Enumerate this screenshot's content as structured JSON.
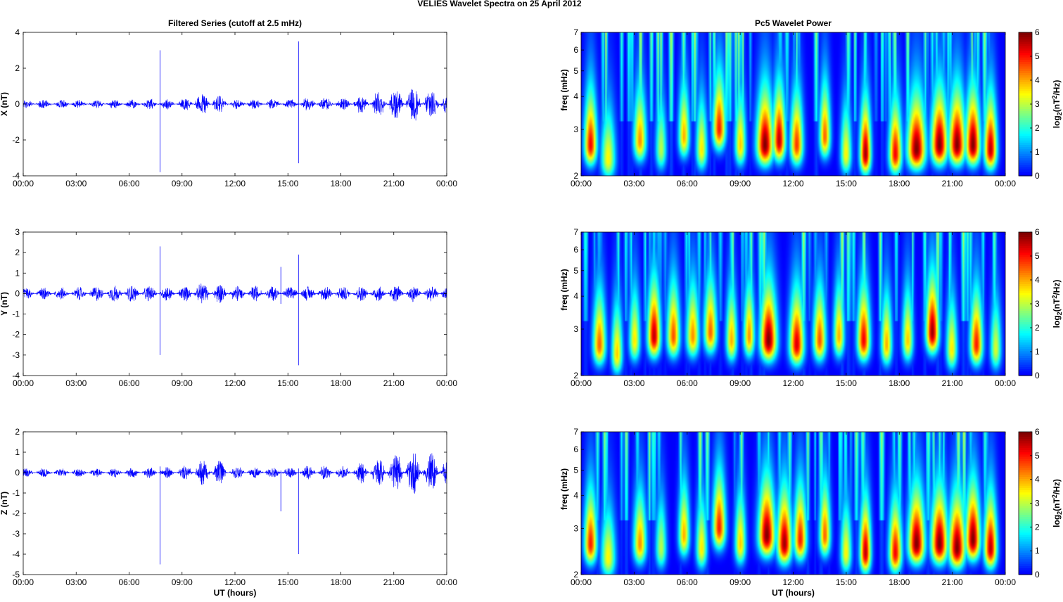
{
  "figure": {
    "title": "VELIES Wavelet Spectra on 25 April     2012"
  },
  "chart_data": [
    {
      "type": "line",
      "id": "x-series",
      "title": "Filtered Series (cutoff at 2.5 mHz)",
      "xlabel": "",
      "ylabel": "X (nT)",
      "x_ticks": [
        "00:00",
        "03:00",
        "06:00",
        "09:00",
        "12:00",
        "15:00",
        "18:00",
        "21:00",
        "00:00"
      ],
      "xlim_hours": [
        0,
        24
      ],
      "y_ticks": [
        -4,
        -2,
        0,
        2,
        4
      ],
      "ylim": [
        -4,
        4
      ],
      "color": "#0000ff",
      "amplitude_envelope": [
        {
          "t": 0,
          "amp": 0.25
        },
        {
          "t": 3,
          "amp": 0.25
        },
        {
          "t": 6,
          "amp": 0.25
        },
        {
          "t": 7.5,
          "amp": 0.3
        },
        {
          "t": 9,
          "amp": 0.3
        },
        {
          "t": 10.5,
          "amp": 0.7
        },
        {
          "t": 12,
          "amp": 0.3
        },
        {
          "t": 15,
          "amp": 0.25
        },
        {
          "t": 16.5,
          "amp": 0.4
        },
        {
          "t": 18,
          "amp": 0.3
        },
        {
          "t": 19.5,
          "amp": 0.6
        },
        {
          "t": 21,
          "amp": 0.8
        },
        {
          "t": 22.5,
          "amp": 1.0
        },
        {
          "t": 24,
          "amp": 0.8
        }
      ],
      "spikes": [
        {
          "t": 7.75,
          "min": -3.8,
          "max": 3.0
        },
        {
          "t": 15.6,
          "min": -3.3,
          "max": 3.5
        }
      ]
    },
    {
      "type": "line",
      "id": "y-series",
      "title": "",
      "xlabel": "",
      "ylabel": "Y (nT)",
      "x_ticks": [
        "00:00",
        "03:00",
        "06:00",
        "09:00",
        "12:00",
        "15:00",
        "18:00",
        "21:00",
        "00:00"
      ],
      "xlim_hours": [
        0,
        24
      ],
      "y_ticks": [
        -4,
        -3,
        -2,
        -1,
        0,
        1,
        2,
        3
      ],
      "ylim": [
        -4,
        3
      ],
      "color": "#0000ff",
      "amplitude_envelope": [
        {
          "t": 0,
          "amp": 0.3
        },
        {
          "t": 3,
          "amp": 0.3
        },
        {
          "t": 4.5,
          "amp": 0.4
        },
        {
          "t": 6,
          "amp": 0.4
        },
        {
          "t": 9,
          "amp": 0.35
        },
        {
          "t": 10.5,
          "amp": 0.6
        },
        {
          "t": 12,
          "amp": 0.4
        },
        {
          "t": 15,
          "amp": 0.35
        },
        {
          "t": 18,
          "amp": 0.35
        },
        {
          "t": 21,
          "amp": 0.4
        },
        {
          "t": 24,
          "amp": 0.4
        }
      ],
      "spikes": [
        {
          "t": 7.75,
          "min": -3.0,
          "max": 2.3
        },
        {
          "t": 14.6,
          "min": -0.5,
          "max": 1.3
        },
        {
          "t": 15.6,
          "min": -3.5,
          "max": 1.9
        }
      ]
    },
    {
      "type": "line",
      "id": "z-series",
      "title": "",
      "xlabel": "UT (hours)",
      "ylabel": "Z (nT)",
      "x_ticks": [
        "00:00",
        "03:00",
        "06:00",
        "09:00",
        "12:00",
        "15:00",
        "18:00",
        "21:00",
        "00:00"
      ],
      "xlim_hours": [
        0,
        24
      ],
      "y_ticks": [
        -5,
        -4,
        -3,
        -2,
        -1,
        0,
        1,
        2
      ],
      "ylim": [
        -5,
        2
      ],
      "color": "#0000ff",
      "amplitude_envelope": [
        {
          "t": 0,
          "amp": 0.25
        },
        {
          "t": 3,
          "amp": 0.2
        },
        {
          "t": 6,
          "amp": 0.25
        },
        {
          "t": 9,
          "amp": 0.3
        },
        {
          "t": 10.5,
          "amp": 0.8
        },
        {
          "t": 12,
          "amp": 0.3
        },
        {
          "t": 15,
          "amp": 0.25
        },
        {
          "t": 16.5,
          "amp": 0.4
        },
        {
          "t": 18,
          "amp": 0.3
        },
        {
          "t": 19.5,
          "amp": 0.6
        },
        {
          "t": 21,
          "amp": 0.9
        },
        {
          "t": 22.5,
          "amp": 1.1
        },
        {
          "t": 24,
          "amp": 0.8
        }
      ],
      "spikes": [
        {
          "t": 7.75,
          "min": -4.5,
          "max": 0.3
        },
        {
          "t": 14.6,
          "min": -1.9,
          "max": 0.1
        },
        {
          "t": 15.6,
          "min": -4.0,
          "max": 0.2
        }
      ]
    },
    {
      "type": "heatmap",
      "id": "x-wavelet",
      "title": "Pc5 Wavelet Power",
      "xlabel": "",
      "ylabel": "freq (mHz)",
      "x_ticks": [
        "00:00",
        "03:00",
        "06:00",
        "09:00",
        "12:00",
        "15:00",
        "18:00",
        "21:00",
        "00:00"
      ],
      "xlim_hours": [
        0,
        24
      ],
      "y_ticks": [
        2,
        3,
        4,
        5,
        6,
        7
      ],
      "ylim_mHz": [
        2,
        7
      ],
      "y_scale": "log",
      "colorbar": {
        "label": "log2(nT^2/Hz)",
        "label_main": "log",
        "label_sub": "2",
        "label_rest1": "(nT",
        "label_sup": "2",
        "label_rest2": "/Hz)",
        "ticks": [
          0,
          1,
          2,
          3,
          4,
          5,
          6
        ],
        "range": [
          0,
          6
        ],
        "colormap": "jet"
      },
      "blobs": [
        {
          "t": 0.5,
          "f": 2.6,
          "p": 5.2,
          "w": 0.35
        },
        {
          "t": 1.5,
          "f": 2.3,
          "p": 3.5,
          "w": 0.4
        },
        {
          "t": 3.3,
          "f": 2.7,
          "p": 4.2,
          "w": 0.35
        },
        {
          "t": 4.5,
          "f": 2.5,
          "p": 3.0,
          "w": 0.3
        },
        {
          "t": 5.8,
          "f": 2.8,
          "p": 4.0,
          "w": 0.3
        },
        {
          "t": 6.8,
          "f": 2.5,
          "p": 3.6,
          "w": 0.3
        },
        {
          "t": 7.8,
          "f": 3.0,
          "p": 5.0,
          "w": 0.35
        },
        {
          "t": 9.0,
          "f": 2.6,
          "p": 3.8,
          "w": 0.3
        },
        {
          "t": 10.4,
          "f": 2.6,
          "p": 6.0,
          "w": 0.45
        },
        {
          "t": 11.2,
          "f": 2.7,
          "p": 5.6,
          "w": 0.35
        },
        {
          "t": 12.2,
          "f": 2.6,
          "p": 4.8,
          "w": 0.35
        },
        {
          "t": 13.8,
          "f": 2.8,
          "p": 4.5,
          "w": 0.3
        },
        {
          "t": 15.0,
          "f": 2.4,
          "p": 3.5,
          "w": 0.3
        },
        {
          "t": 16.1,
          "f": 2.4,
          "p": 5.8,
          "w": 0.3
        },
        {
          "t": 17.8,
          "f": 2.4,
          "p": 5.2,
          "w": 0.35
        },
        {
          "t": 19.0,
          "f": 2.5,
          "p": 6.0,
          "w": 0.5
        },
        {
          "t": 20.3,
          "f": 2.6,
          "p": 6.0,
          "w": 0.45
        },
        {
          "t": 21.3,
          "f": 2.6,
          "p": 6.0,
          "w": 0.45
        },
        {
          "t": 22.2,
          "f": 2.6,
          "p": 6.0,
          "w": 0.4
        },
        {
          "t": 23.2,
          "f": 2.5,
          "p": 5.6,
          "w": 0.35
        }
      ]
    },
    {
      "type": "heatmap",
      "id": "y-wavelet",
      "title": "",
      "xlabel": "",
      "ylabel": "freq (mHz)",
      "x_ticks": [
        "00:00",
        "03:00",
        "06:00",
        "09:00",
        "12:00",
        "15:00",
        "18:00",
        "21:00",
        "00:00"
      ],
      "xlim_hours": [
        0,
        24
      ],
      "y_ticks": [
        2,
        3,
        4,
        5,
        6,
        7
      ],
      "ylim_mHz": [
        2,
        7
      ],
      "y_scale": "log",
      "colorbar": {
        "label": "log2(nT^2/Hz)",
        "label_main": "log",
        "label_sub": "2",
        "label_rest1": "(nT",
        "label_sup": "2",
        "label_rest2": "/Hz)",
        "ticks": [
          0,
          1,
          2,
          3,
          4,
          5,
          6
        ],
        "range": [
          0,
          6
        ],
        "colormap": "jet"
      },
      "blobs": [
        {
          "t": 1.0,
          "f": 2.6,
          "p": 4.5,
          "w": 0.35
        },
        {
          "t": 2.0,
          "f": 2.4,
          "p": 3.8,
          "w": 0.3
        },
        {
          "t": 3.0,
          "f": 2.7,
          "p": 3.6,
          "w": 0.3
        },
        {
          "t": 4.1,
          "f": 2.8,
          "p": 5.6,
          "w": 0.35
        },
        {
          "t": 5.2,
          "f": 2.8,
          "p": 4.6,
          "w": 0.35
        },
        {
          "t": 6.3,
          "f": 2.8,
          "p": 4.2,
          "w": 0.35
        },
        {
          "t": 7.3,
          "f": 2.9,
          "p": 4.5,
          "w": 0.35
        },
        {
          "t": 8.5,
          "f": 2.7,
          "p": 4.0,
          "w": 0.3
        },
        {
          "t": 9.5,
          "f": 2.8,
          "p": 4.2,
          "w": 0.3
        },
        {
          "t": 10.6,
          "f": 2.7,
          "p": 6.0,
          "w": 0.45
        },
        {
          "t": 12.2,
          "f": 2.6,
          "p": 5.4,
          "w": 0.4
        },
        {
          "t": 13.5,
          "f": 2.7,
          "p": 4.6,
          "w": 0.35
        },
        {
          "t": 14.6,
          "f": 2.8,
          "p": 4.0,
          "w": 0.3
        },
        {
          "t": 16.0,
          "f": 2.7,
          "p": 5.2,
          "w": 0.35
        },
        {
          "t": 17.3,
          "f": 2.6,
          "p": 4.0,
          "w": 0.3
        },
        {
          "t": 18.5,
          "f": 2.7,
          "p": 3.8,
          "w": 0.3
        },
        {
          "t": 19.9,
          "f": 2.9,
          "p": 5.8,
          "w": 0.35
        },
        {
          "t": 21.0,
          "f": 2.5,
          "p": 3.6,
          "w": 0.3
        },
        {
          "t": 22.4,
          "f": 2.6,
          "p": 5.0,
          "w": 0.35
        },
        {
          "t": 23.5,
          "f": 2.5,
          "p": 3.2,
          "w": 0.3
        }
      ]
    },
    {
      "type": "heatmap",
      "id": "z-wavelet",
      "title": "",
      "xlabel": "UT (hours)",
      "ylabel": "freq (mHz)",
      "x_ticks": [
        "00:00",
        "03:00",
        "06:00",
        "09:00",
        "12:00",
        "15:00",
        "18:00",
        "21:00",
        "00:00"
      ],
      "xlim_hours": [
        0,
        24
      ],
      "y_ticks": [
        2,
        3,
        4,
        5,
        6,
        7
      ],
      "ylim_mHz": [
        2,
        7
      ],
      "y_scale": "log",
      "colorbar": {
        "label": "log2(nT^2/Hz)",
        "label_main": "log",
        "label_sub": "2",
        "label_rest1": "(nT",
        "label_sup": "2",
        "label_rest2": "/Hz)",
        "ticks": [
          0,
          1,
          2,
          3,
          4,
          5,
          6
        ],
        "range": [
          0,
          6
        ],
        "colormap": "jet"
      },
      "blobs": [
        {
          "t": 0.5,
          "f": 2.6,
          "p": 5.0,
          "w": 0.35
        },
        {
          "t": 1.5,
          "f": 2.3,
          "p": 3.5,
          "w": 0.4
        },
        {
          "t": 3.3,
          "f": 2.6,
          "p": 4.2,
          "w": 0.35
        },
        {
          "t": 4.5,
          "f": 2.5,
          "p": 3.0,
          "w": 0.3
        },
        {
          "t": 5.8,
          "f": 2.8,
          "p": 4.0,
          "w": 0.3
        },
        {
          "t": 6.8,
          "f": 2.5,
          "p": 3.6,
          "w": 0.3
        },
        {
          "t": 7.8,
          "f": 3.0,
          "p": 5.0,
          "w": 0.35
        },
        {
          "t": 9.0,
          "f": 2.6,
          "p": 3.8,
          "w": 0.3
        },
        {
          "t": 10.5,
          "f": 2.8,
          "p": 6.0,
          "w": 0.45
        },
        {
          "t": 11.5,
          "f": 2.6,
          "p": 5.8,
          "w": 0.4
        },
        {
          "t": 12.4,
          "f": 2.7,
          "p": 5.0,
          "w": 0.35
        },
        {
          "t": 13.8,
          "f": 2.8,
          "p": 4.5,
          "w": 0.3
        },
        {
          "t": 15.0,
          "f": 2.4,
          "p": 3.5,
          "w": 0.3
        },
        {
          "t": 16.1,
          "f": 2.4,
          "p": 5.6,
          "w": 0.3
        },
        {
          "t": 17.8,
          "f": 2.4,
          "p": 5.2,
          "w": 0.35
        },
        {
          "t": 19.0,
          "f": 2.6,
          "p": 6.0,
          "w": 0.45
        },
        {
          "t": 20.3,
          "f": 2.6,
          "p": 6.0,
          "w": 0.45
        },
        {
          "t": 21.3,
          "f": 2.5,
          "p": 6.0,
          "w": 0.45
        },
        {
          "t": 22.2,
          "f": 2.7,
          "p": 6.0,
          "w": 0.4
        },
        {
          "t": 23.2,
          "f": 2.5,
          "p": 5.6,
          "w": 0.35
        }
      ]
    }
  ]
}
